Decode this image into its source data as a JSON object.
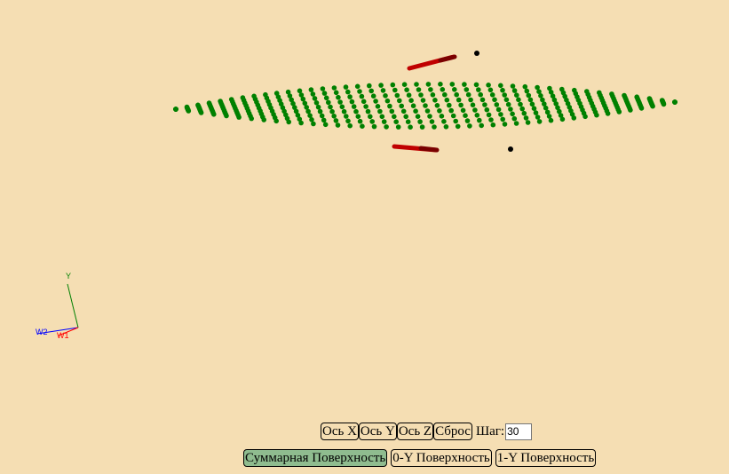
{
  "toolbar": {
    "axis_x_label": "Ось X",
    "axis_y_label": "Ось Y",
    "axis_z_label": "Ось Z",
    "reset_label": "Сброс",
    "step_label": "Шаг:",
    "step_value": "30"
  },
  "surfaces": {
    "total_label": "Суммарная Поверхность",
    "y0_label": "0-Y Поверхность",
    "y1_label": "1-Y Поверхность",
    "active": "total"
  },
  "gizmo": {
    "y_label": "Y",
    "w2_label": "W2",
    "w1_label": "W1"
  },
  "colors": {
    "background": "#f5deb3",
    "surface_points": "#008000",
    "markers": "#cc0000",
    "active_button": "#8fbc8f",
    "axis_y": "#008000",
    "axis_w2": "#0000ff",
    "axis_w1": "#ff0000"
  }
}
